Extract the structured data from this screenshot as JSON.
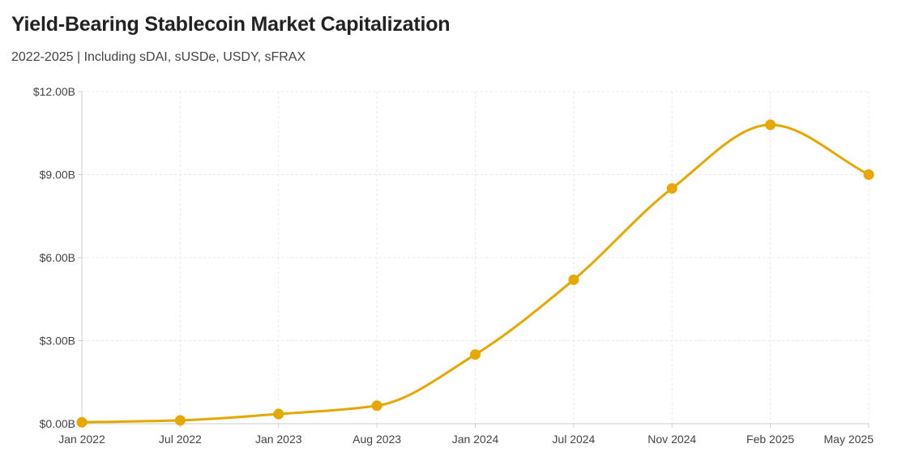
{
  "chart_data": {
    "type": "line",
    "title": "Yield-Bearing Stablecoin Market Capitalization",
    "subtitle": "2022-2025 | Including sDAI, sUSDe, USDY, sFRAX",
    "xlabel": "",
    "ylabel": "",
    "x": [
      "Jan 2022",
      "Jul 2022",
      "Jan 2023",
      "Aug 2023",
      "Jan 2024",
      "Jul 2024",
      "Nov 2024",
      "Feb 2025",
      "May 2025"
    ],
    "series": [
      {
        "values": [
          0.05,
          0.12,
          0.35,
          0.65,
          2.5,
          5.2,
          8.5,
          10.8,
          9.0
        ]
      }
    ],
    "ylim": [
      0,
      12
    ],
    "yticks": [
      0,
      3,
      6,
      9,
      12
    ],
    "ytick_labels": [
      "$0.00B",
      "$3.00B",
      "$6.00B",
      "$9.00B",
      "$12.00B"
    ],
    "grid": true,
    "legend": "none",
    "colors": {
      "line": "#E6A800",
      "grid": "#e8e8e8",
      "axis": "#cccccc"
    }
  }
}
